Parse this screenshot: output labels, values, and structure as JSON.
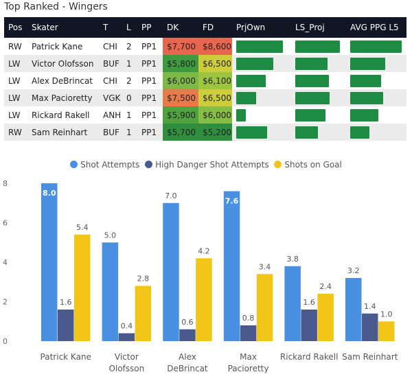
{
  "table": {
    "title": "Top Ranked - Wingers",
    "headers": [
      "Pos",
      "Skater",
      "T",
      "L",
      "PP",
      "DK",
      "FD",
      "PrjOwn",
      "LS_Proj",
      "AVG PPG L5"
    ],
    "rows": [
      {
        "pos": "RW",
        "skater": "Patrick Kane",
        "team": "CHI",
        "line": "2",
        "pp": "PP1",
        "dk": "$7,700",
        "fd": "$8,600",
        "dk_color": "#e8654f",
        "fd_color": "#e8654f",
        "prjown": 0.85,
        "ls_proj": 0.88,
        "avg_ppg": 0.92
      },
      {
        "pos": "LW",
        "skater": "Victor Olofsson",
        "team": "BUF",
        "line": "1",
        "pp": "PP1",
        "dk": "$5,800",
        "fd": "$6,500",
        "dk_color": "#3f9a3f",
        "fd_color": "#cdcd3a",
        "prjown": 0.68,
        "ls_proj": 0.64,
        "avg_ppg": 0.62
      },
      {
        "pos": "LW",
        "skater": "Alex DeBrincat",
        "team": "CHI",
        "line": "2",
        "pp": "PP1",
        "dk": "$6,000",
        "fd": "$6,100",
        "dk_color": "#7db944",
        "fd_color": "#9cc640",
        "prjown": 0.54,
        "ls_proj": 0.66,
        "avg_ppg": 0.55
      },
      {
        "pos": "LW",
        "skater": "Max Pacioretty",
        "team": "VGK",
        "line": "0",
        "pp": "PP1",
        "dk": "$7,500",
        "fd": "$6,500",
        "dk_color": "#e8794b",
        "fd_color": "#cdcd3a",
        "prjown": 0.36,
        "ls_proj": 0.68,
        "avg_ppg": 0.58
      },
      {
        "pos": "LW",
        "skater": "Rickard Rakell",
        "team": "ANH",
        "line": "1",
        "pp": "PP1",
        "dk": "$5,900",
        "fd": "$6,000",
        "dk_color": "#4fa23f",
        "fd_color": "#86bd44",
        "prjown": 0.18,
        "ls_proj": 0.6,
        "avg_ppg": 0.5
      },
      {
        "pos": "RW",
        "skater": "Sam Reinhart",
        "team": "BUF",
        "line": "1",
        "pp": "PP1",
        "dk": "$5,700",
        "fd": "$5,200",
        "dk_color": "#2f8f3f",
        "fd_color": "#2f8f3f",
        "prjown": 0.56,
        "ls_proj": 0.44,
        "avg_ppg": 0.34
      }
    ]
  },
  "chart_data": {
    "type": "bar",
    "categories": [
      "Patrick Kane",
      "Victor Olofsson",
      "Alex DeBrincat",
      "Max Pacioretty",
      "Rickard Rakell",
      "Sam Reinhart"
    ],
    "category_lines": [
      [
        "Patrick Kane"
      ],
      [
        "Victor",
        "Olofsson"
      ],
      [
        "Alex",
        "DeBrincat"
      ],
      [
        "Max",
        "Pacioretty"
      ],
      [
        "Rickard Rakell"
      ],
      [
        "Sam Reinhart"
      ]
    ],
    "series": [
      {
        "name": "Shot Attempts",
        "color": "#4a90e2",
        "values": [
          8.0,
          5.0,
          7.0,
          7.6,
          3.8,
          3.2
        ],
        "labels": [
          "8.0",
          "5.0",
          "7.0",
          "7.6",
          "3.8",
          "3.2"
        ]
      },
      {
        "name": "High Danger Shot Attempts",
        "color": "#4a5a8c",
        "values": [
          1.6,
          0.4,
          0.6,
          0.8,
          1.6,
          1.4
        ],
        "labels": [
          "1.6",
          "0.4",
          "0.6",
          "0.8",
          "1.6",
          "1.4"
        ]
      },
      {
        "name": "Shots on Goal",
        "color": "#f2c618",
        "values": [
          5.4,
          2.8,
          4.2,
          3.4,
          2.4,
          1.0
        ],
        "labels": [
          "5.4",
          "2.8",
          "4.2",
          "3.4",
          "2.4",
          "1.0"
        ]
      }
    ],
    "yticks": [
      "0",
      "2",
      "4",
      "6",
      "8"
    ],
    "ylim": [
      0,
      8
    ],
    "grid": false,
    "legend": "top-center",
    "title": "",
    "xlabel": "",
    "ylabel": ""
  }
}
